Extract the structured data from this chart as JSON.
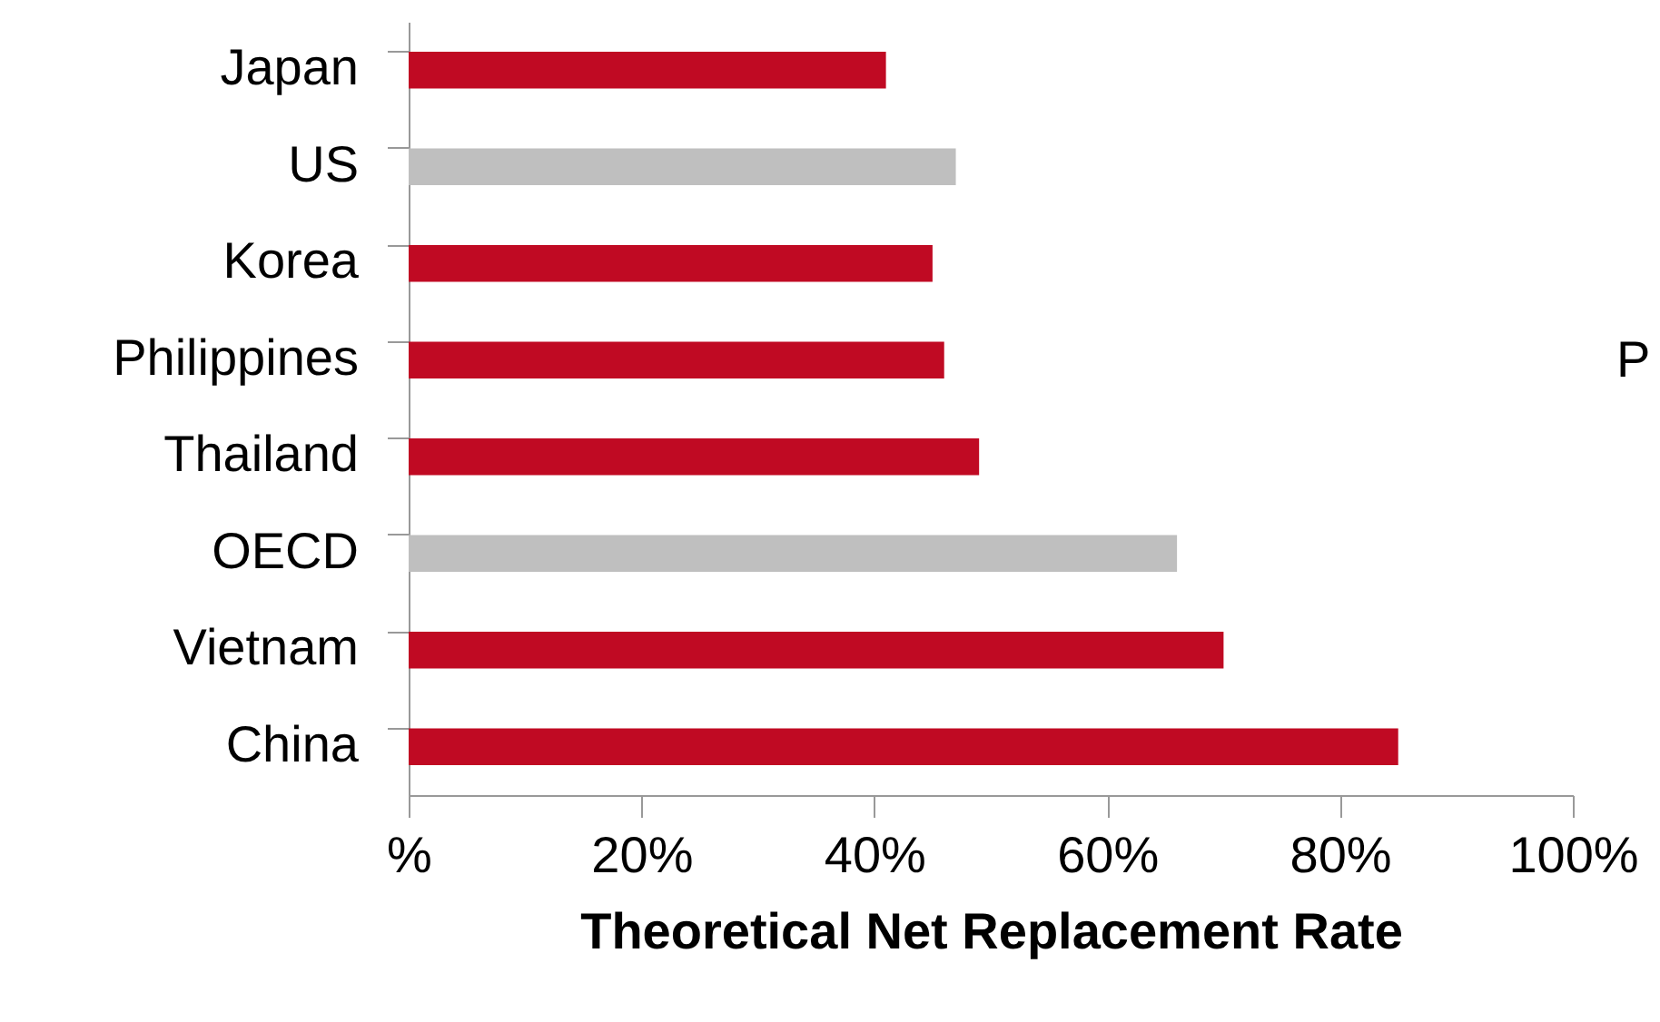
{
  "chart_data": {
    "type": "bar",
    "orientation": "horizontal",
    "xlabel": "Theoretical Net Replacement Rate",
    "categories": [
      "Japan",
      "US",
      "Korea",
      "Philippines",
      "Thailand",
      "OECD",
      "Vietnam",
      "China"
    ],
    "values": [
      41,
      47,
      45,
      46,
      49,
      66,
      70,
      85
    ],
    "colors": [
      "#c00a23",
      "#bfbfbf",
      "#c00a23",
      "#c00a23",
      "#c00a23",
      "#bfbfbf",
      "#c00a23",
      "#c00a23"
    ],
    "xlim": [
      0,
      100
    ],
    "xticks": [
      {
        "value": 0,
        "label": "%"
      },
      {
        "value": 20,
        "label": "20%"
      },
      {
        "value": 40,
        "label": "40%"
      },
      {
        "value": 60,
        "label": "60%"
      },
      {
        "value": 80,
        "label": "80%"
      },
      {
        "value": 100,
        "label": "100%"
      }
    ],
    "grid": false,
    "annotations": [
      "P"
    ]
  }
}
